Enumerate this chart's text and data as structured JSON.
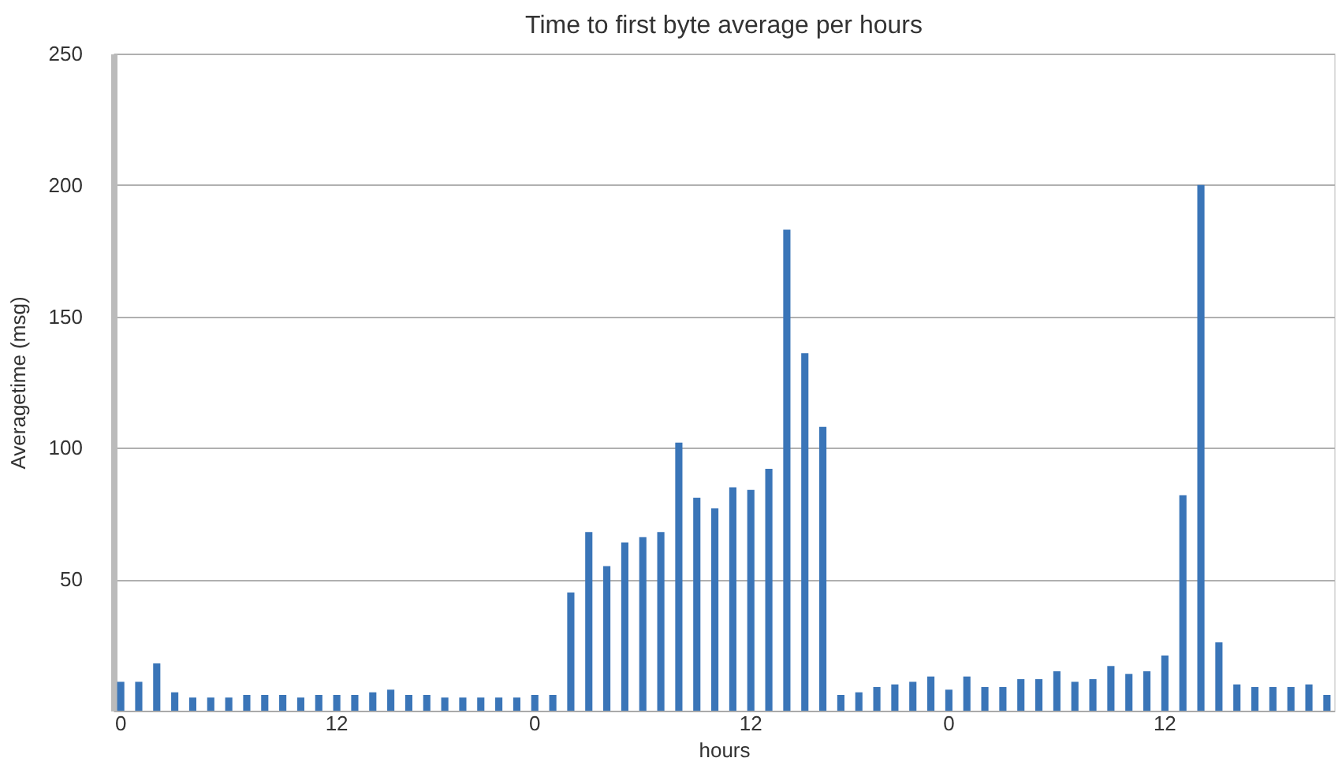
{
  "chart_data": {
    "type": "bar",
    "title": "Time to first byte average per hours",
    "xlabel": "hours",
    "ylabel": "Averagetime (msg)",
    "categories": [
      "0",
      null,
      null,
      null,
      null,
      null,
      null,
      null,
      null,
      null,
      null,
      null,
      "12",
      null,
      null,
      null,
      null,
      null,
      null,
      null,
      null,
      null,
      null,
      "0",
      null,
      null,
      null,
      null,
      null,
      null,
      null,
      null,
      null,
      null,
      null,
      "12",
      null,
      null,
      null,
      null,
      null,
      null,
      null,
      null,
      null,
      null,
      "0",
      null,
      null,
      null,
      null,
      null,
      null,
      null,
      null,
      null,
      null,
      null,
      "12",
      null,
      null,
      null,
      null,
      null,
      null,
      null,
      null,
      null
    ],
    "values": [
      11,
      11,
      18,
      7,
      5,
      5,
      5,
      6,
      6,
      6,
      5,
      6,
      6,
      6,
      7,
      8,
      6,
      6,
      5,
      5,
      5,
      5,
      5,
      6,
      6,
      45,
      68,
      55,
      64,
      66,
      68,
      102,
      81,
      77,
      85,
      84,
      92,
      183,
      136,
      108,
      6,
      7,
      9,
      10,
      11,
      13,
      8,
      13,
      9,
      9,
      12,
      12,
      15,
      11,
      12,
      17,
      14,
      15,
      21,
      82,
      200,
      26,
      10,
      9,
      9,
      9,
      10,
      6
    ],
    "color": "#3a75b8",
    "ylim": [
      0,
      250
    ],
    "yticks": [
      {
        "value": 0,
        "label": null
      },
      50,
      100,
      150,
      200,
      250
    ],
    "grid": "y"
  }
}
